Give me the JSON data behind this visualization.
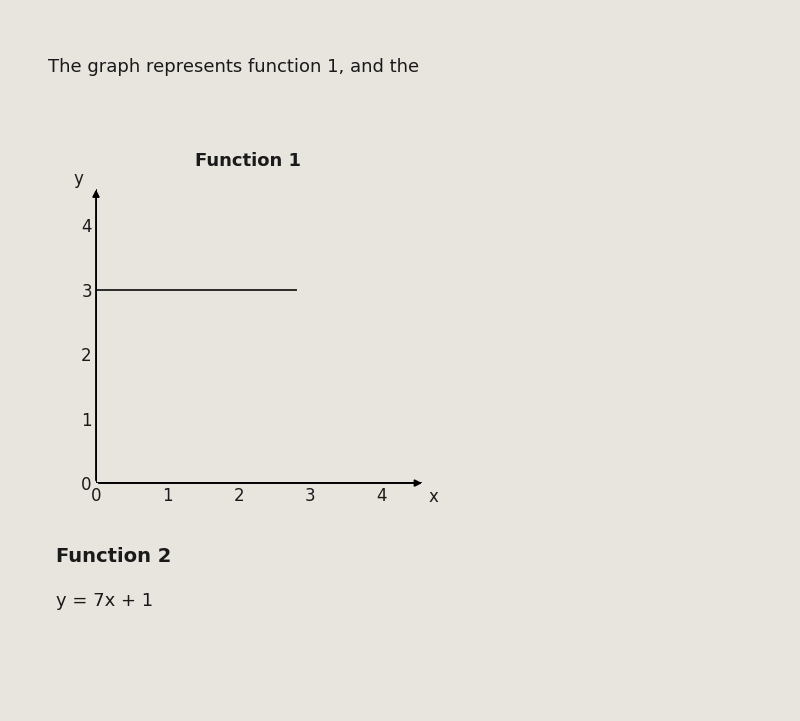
{
  "title": "Function 1",
  "subtitle_top": "The graph represents function 1, and the",
  "function2_label": "Function 2",
  "function2_eq": "y = 7x + 1",
  "xlim": [
    0,
    4.7
  ],
  "ylim": [
    0,
    4.7
  ],
  "xticks": [
    0,
    1,
    2,
    3,
    4
  ],
  "yticks": [
    0,
    1,
    2,
    3,
    4
  ],
  "xlabel": "x",
  "ylabel": "y",
  "line_x_start": 0,
  "line_x_end": 2.8,
  "line_y": 3,
  "line_color": "#2a2a2a",
  "line_width": 1.4,
  "background_color": "#e8e4de",
  "text_color": "#1a1a1a",
  "title_fontsize": 13,
  "tick_fontsize": 12,
  "axis_label_fontsize": 12,
  "function2_fontsize": 14,
  "eq_fontsize": 13,
  "subtitle_fontsize": 13
}
